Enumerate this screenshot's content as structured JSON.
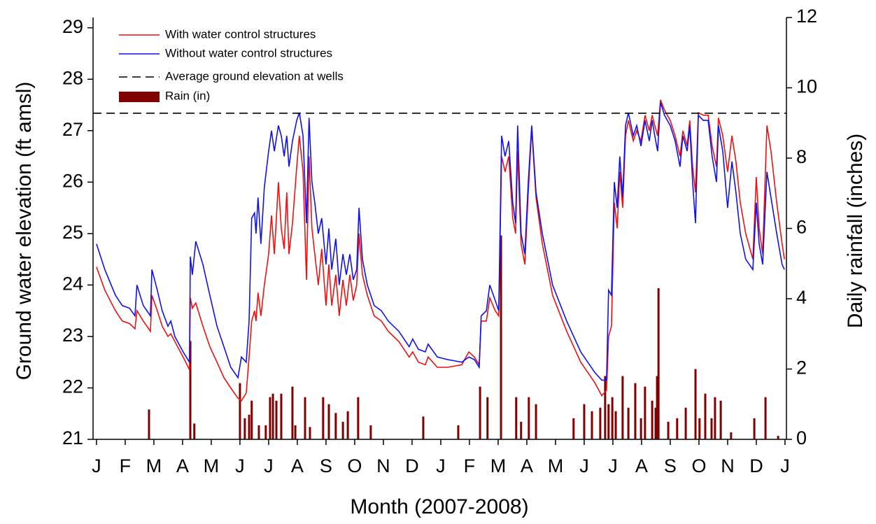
{
  "chart_data": {
    "type": "line",
    "xlabel": "Month (2007-2008)",
    "ylabel": "Ground water elevation (ft amsl)",
    "y2label": "Daily rainfall (inches)",
    "xlim": [
      -0.12,
      24.05
    ],
    "xticks": [
      {
        "value": 0,
        "label": "J"
      },
      {
        "value": 1,
        "label": "F"
      },
      {
        "value": 2,
        "label": "M"
      },
      {
        "value": 3,
        "label": "A"
      },
      {
        "value": 4,
        "label": "M"
      },
      {
        "value": 5,
        "label": "J"
      },
      {
        "value": 6,
        "label": "J"
      },
      {
        "value": 7,
        "label": "A"
      },
      {
        "value": 8,
        "label": "S"
      },
      {
        "value": 9,
        "label": "O"
      },
      {
        "value": 10,
        "label": "N"
      },
      {
        "value": 11,
        "label": "D"
      },
      {
        "value": 12,
        "label": "J"
      },
      {
        "value": 13,
        "label": "F"
      },
      {
        "value": 14,
        "label": "M"
      },
      {
        "value": 15,
        "label": "A"
      },
      {
        "value": 16,
        "label": "M"
      },
      {
        "value": 17,
        "label": "J"
      },
      {
        "value": 18,
        "label": "J"
      },
      {
        "value": 19,
        "label": "A"
      },
      {
        "value": 20,
        "label": "S"
      },
      {
        "value": 21,
        "label": "O"
      },
      {
        "value": 22,
        "label": "N"
      },
      {
        "value": 23,
        "label": "D"
      },
      {
        "value": 24,
        "label": "J"
      }
    ],
    "ylim": [
      21,
      29.2
    ],
    "yticks": [
      21,
      22,
      23,
      24,
      25,
      26,
      27,
      28,
      29
    ],
    "y2lim": [
      0,
      12
    ],
    "y2ticks": [
      0,
      2,
      4,
      6,
      8,
      10,
      12
    ],
    "x": [
      0,
      0.29,
      0.66,
      0.9,
      1.15,
      1.34,
      1.41,
      1.63,
      1.88,
      1.93,
      2.12,
      2.29,
      2.49,
      2.59,
      2.73,
      3.02,
      3.24,
      3.27,
      3.34,
      3.46,
      3.71,
      3.95,
      4.2,
      4.44,
      4.68,
      4.93,
      5.05,
      5.22,
      5.32,
      5.41,
      5.51,
      5.56,
      5.63,
      5.73,
      5.85,
      6.0,
      6.1,
      6.2,
      6.34,
      6.44,
      6.54,
      6.63,
      6.71,
      6.83,
      6.98,
      7.07,
      7.2,
      7.32,
      7.41,
      7.51,
      7.61,
      7.73,
      7.85,
      8.0,
      8.1,
      8.2,
      8.34,
      8.46,
      8.59,
      8.71,
      8.83,
      8.95,
      9.07,
      9.15,
      9.27,
      9.44,
      9.68,
      9.93,
      10.17,
      10.54,
      10.9,
      11.02,
      11.22,
      11.46,
      11.56,
      11.88,
      12.24,
      12.73,
      12.98,
      13.17,
      13.34,
      13.41,
      13.59,
      13.71,
      13.9,
      14.02,
      14.12,
      14.24,
      14.37,
      14.51,
      14.61,
      14.68,
      14.8,
      14.93,
      15.05,
      15.17,
      15.32,
      15.54,
      15.9,
      16.39,
      16.88,
      17.37,
      17.61,
      17.78,
      17.85,
      17.95,
      18.05,
      18.15,
      18.24,
      18.34,
      18.44,
      18.54,
      18.71,
      18.83,
      18.98,
      19.12,
      19.27,
      19.37,
      19.46,
      19.56,
      19.66,
      19.8,
      20.0,
      20.17,
      20.34,
      20.44,
      20.59,
      20.68,
      20.78,
      20.88,
      20.98,
      21.15,
      21.32,
      21.46,
      21.61,
      21.68,
      21.83,
      22.0,
      22.15,
      22.29,
      22.44,
      22.63,
      22.88,
      23.0,
      23.1,
      23.22,
      23.37,
      23.51,
      23.71,
      23.9,
      23.98
    ],
    "series": [
      {
        "name": "With water control structures",
        "color": "#ee1111",
        "values": [
          24.35,
          23.9,
          23.5,
          23.3,
          23.25,
          23.15,
          23.5,
          23.3,
          23.1,
          23.8,
          23.5,
          23.2,
          23.0,
          23.05,
          22.9,
          22.6,
          22.35,
          23.75,
          23.55,
          23.65,
          23.2,
          22.8,
          22.5,
          22.2,
          22.0,
          21.8,
          21.75,
          21.9,
          22.6,
          23.3,
          23.5,
          23.3,
          23.85,
          23.4,
          24.0,
          24.6,
          25.35,
          24.6,
          26.0,
          25.1,
          24.7,
          25.8,
          24.6,
          25.2,
          26.3,
          26.9,
          26.2,
          24.1,
          26.5,
          25.1,
          24.6,
          24.0,
          24.7,
          23.6,
          24.4,
          23.6,
          24.2,
          23.4,
          24.1,
          23.6,
          24.2,
          23.7,
          24.0,
          25.0,
          24.2,
          23.8,
          23.4,
          23.3,
          23.1,
          22.9,
          22.6,
          22.7,
          22.5,
          22.45,
          22.6,
          22.4,
          22.4,
          22.45,
          22.7,
          22.6,
          22.45,
          23.3,
          23.3,
          23.75,
          23.5,
          23.4,
          26.5,
          26.2,
          26.5,
          25.3,
          25.0,
          26.6,
          24.8,
          24.4,
          25.8,
          27.05,
          25.7,
          24.8,
          23.8,
          23.1,
          22.5,
          22.1,
          21.85,
          21.95,
          23.0,
          23.2,
          25.6,
          25.1,
          26.2,
          25.5,
          26.9,
          27.2,
          26.8,
          27.0,
          26.8,
          27.3,
          27.0,
          27.3,
          27.1,
          26.9,
          27.6,
          27.4,
          27.2,
          26.9,
          26.5,
          27.0,
          26.7,
          27.2,
          26.3,
          25.8,
          27.35,
          27.3,
          27.3,
          26.7,
          26.3,
          27.25,
          26.9,
          26.2,
          26.9,
          26.4,
          25.6,
          25.0,
          24.5,
          26.1,
          25.1,
          24.6,
          27.1,
          26.6,
          25.6,
          24.8,
          24.5
        ]
      },
      {
        "name": "Without water control structures",
        "color": "#1111ee",
        "values": [
          24.8,
          24.3,
          23.8,
          23.6,
          23.55,
          23.4,
          24.0,
          23.6,
          23.4,
          24.3,
          23.9,
          23.5,
          23.2,
          23.3,
          23.0,
          22.7,
          22.5,
          24.55,
          24.2,
          24.85,
          24.4,
          23.8,
          23.2,
          22.8,
          22.4,
          22.2,
          22.6,
          22.5,
          23.3,
          25.3,
          25.4,
          25.0,
          25.7,
          24.8,
          25.9,
          26.6,
          27.0,
          26.6,
          27.1,
          26.9,
          26.5,
          26.9,
          26.3,
          26.8,
          27.2,
          27.35,
          26.9,
          25.2,
          27.25,
          26.0,
          25.6,
          25.0,
          25.3,
          24.4,
          25.1,
          24.3,
          24.9,
          24.0,
          24.6,
          24.2,
          24.6,
          24.1,
          24.3,
          25.5,
          24.5,
          24.0,
          23.6,
          23.5,
          23.3,
          23.1,
          22.8,
          22.95,
          22.75,
          22.7,
          22.85,
          22.6,
          22.55,
          22.5,
          22.6,
          22.55,
          22.4,
          23.4,
          23.5,
          24.0,
          23.7,
          23.5,
          26.9,
          26.5,
          26.8,
          25.6,
          25.2,
          27.1,
          25.0,
          24.6,
          26.0,
          27.1,
          25.8,
          25.0,
          24.0,
          23.3,
          22.7,
          22.3,
          22.15,
          22.15,
          23.9,
          23.8,
          26.0,
          25.5,
          26.5,
          25.7,
          27.1,
          27.35,
          26.9,
          27.1,
          26.7,
          27.2,
          26.8,
          27.2,
          26.9,
          26.6,
          27.55,
          27.3,
          27.1,
          26.8,
          26.3,
          26.9,
          26.6,
          27.1,
          26.0,
          25.2,
          27.3,
          27.2,
          27.2,
          26.5,
          26.0,
          27.1,
          26.6,
          25.5,
          26.4,
          25.8,
          25.0,
          24.5,
          24.3,
          25.6,
          24.8,
          24.4,
          26.2,
          25.7,
          25.0,
          24.4,
          24.3
        ]
      }
    ],
    "reference_line": {
      "name": "Average ground elevation at wells",
      "value": 27.34,
      "color": "#000000"
    },
    "rain": {
      "name": "Rain (in)",
      "color": "#800000",
      "axis": "y2",
      "x": [
        1.83,
        3.27,
        3.41,
        5.0,
        5.17,
        5.32,
        5.41,
        5.66,
        5.9,
        6.05,
        6.15,
        6.27,
        6.44,
        6.83,
        6.93,
        7.27,
        7.44,
        7.9,
        8.1,
        8.34,
        8.59,
        8.76,
        9.12,
        9.56,
        11.39,
        12.61,
        13.37,
        13.63,
        14.1,
        14.63,
        14.8,
        15.07,
        15.32,
        16.63,
        17.0,
        17.27,
        17.56,
        17.73,
        17.85,
        17.98,
        18.1,
        18.34,
        18.54,
        18.78,
        18.98,
        19.12,
        19.37,
        19.49,
        19.54,
        19.59,
        19.93,
        20.24,
        20.54,
        20.88,
        21.02,
        21.22,
        21.44,
        21.56,
        21.76,
        22.12,
        22.93,
        23.32,
        23.76
      ],
      "values": [
        0.85,
        2.8,
        0.45,
        1.6,
        0.6,
        0.7,
        1.1,
        0.4,
        0.4,
        1.2,
        1.3,
        1.1,
        1.3,
        1.5,
        0.4,
        1.2,
        0.35,
        1.2,
        1.0,
        0.75,
        0.5,
        0.8,
        1.2,
        0.4,
        0.65,
        0.4,
        1.5,
        1.2,
        5.8,
        1.2,
        0.5,
        1.2,
        1.0,
        0.6,
        1.0,
        0.8,
        0.9,
        1.8,
        1.0,
        1.2,
        0.8,
        1.8,
        0.9,
        1.6,
        0.6,
        1.5,
        1.1,
        0.9,
        1.8,
        4.3,
        0.5,
        0.6,
        0.9,
        2.0,
        0.6,
        1.3,
        0.6,
        1.2,
        1.1,
        0.2,
        0.6,
        1.2,
        0.1
      ]
    }
  }
}
